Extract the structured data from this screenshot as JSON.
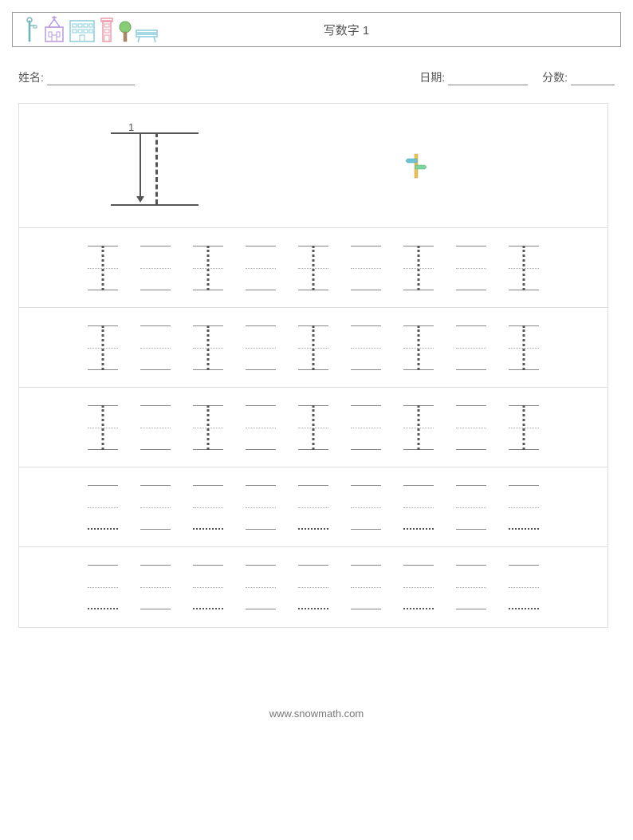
{
  "header": {
    "title": "写数字 1"
  },
  "info": {
    "name_label": "姓名:",
    "date_label": "日期:",
    "score_label": "分数:"
  },
  "stroke": {
    "number": "1"
  },
  "practice": {
    "rows": 5,
    "cells_per_row": 9,
    "rows_with_number": 3,
    "colors": {
      "line": "#888888",
      "dotted": "#aaaaaa",
      "number_dot": "#555555"
    }
  },
  "footer": {
    "url": "www.snowmath.com"
  },
  "icons": {
    "header_icons": [
      "streetlight",
      "church",
      "office",
      "tower",
      "tree",
      "bench"
    ],
    "signpost": "signpost"
  }
}
